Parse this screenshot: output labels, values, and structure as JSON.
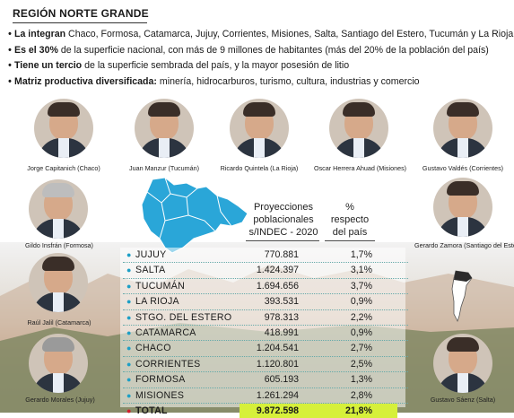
{
  "title": "REGIÓN NORTE GRANDE",
  "bullets": [
    {
      "bold": "La integran",
      "text": " Chaco, Formosa, Catamarca, Jujuy, Corrientes, Misiones, Salta, Santiago del Estero, Tucumán y La Rioja."
    },
    {
      "bold": "Es el 30%",
      "text": " de la superficie nacional, con más de 9 millones de habitantes (más del 20% de la población del país)"
    },
    {
      "bold": "Tiene un tercio",
      "text": " de la superficie sembrada del país, y la mayor posesión de litio"
    },
    {
      "bold": "Matriz productiva diversificada:",
      "text": " minería, hidrocarburos, turismo, cultura, industrias y comercio"
    }
  ],
  "governors": [
    {
      "name": "Jorge Capitanich (Chaco)"
    },
    {
      "name": "Juan Manzur (Tucumán)"
    },
    {
      "name": "Ricardo Quintela (La Rioja)"
    },
    {
      "name": "Oscar Herrera Ahuad (Misiones)"
    },
    {
      "name": "Gustavo Valdés (Corrientes)"
    },
    {
      "name": "Gildo Insfrán (Formosa)"
    },
    {
      "name": "Gerardo Zamora (Santiago del Estero)"
    },
    {
      "name": "Raúl Jalil (Catamarca)"
    },
    {
      "name": "Gerardo Morales (Jujuy)"
    },
    {
      "name": "Gustavo Sáenz (Salta)"
    }
  ],
  "table": {
    "col_pop_line1": "Proyecciones",
    "col_pop_line2": "poblacionales",
    "col_pop_line3": "s/INDEC - 2020",
    "col_pct_line1": "%",
    "col_pct_line2": "respecto",
    "col_pct_line3": "del país",
    "rows": [
      {
        "name": "JUJUY",
        "pop": "770.881",
        "pct": "1,7%"
      },
      {
        "name": "SALTA",
        "pop": "1.424.397",
        "pct": "3,1%"
      },
      {
        "name": "TUCUMÁN",
        "pop": "1.694.656",
        "pct": "3,7%"
      },
      {
        "name": "LA RIOJA",
        "pop": "393.531",
        "pct": "0,9%"
      },
      {
        "name": "STGO. DEL ESTERO",
        "pop": "978.313",
        "pct": "2,2%"
      },
      {
        "name": "CATAMARCA",
        "pop": "418.991",
        "pct": "0,9%"
      },
      {
        "name": "CHACO",
        "pop": "1.204.541",
        "pct": "2,7%"
      },
      {
        "name": "CORRIENTES",
        "pop": "1.120.801",
        "pct": "2,5%"
      },
      {
        "name": "FORMOSA",
        "pop": "605.193",
        "pct": "1,3%"
      },
      {
        "name": "MISIONES",
        "pop": "1.261.294",
        "pct": "2,8%"
      }
    ],
    "total": {
      "name": "TOTAL",
      "pop": "9.872.598",
      "pct": "21,8%"
    }
  },
  "colors": {
    "map_fill": "#2aa6d8",
    "bullet_blue": "#1d9fc6",
    "total_highlight": "#d6f03a",
    "total_dot": "#d21e2a"
  }
}
